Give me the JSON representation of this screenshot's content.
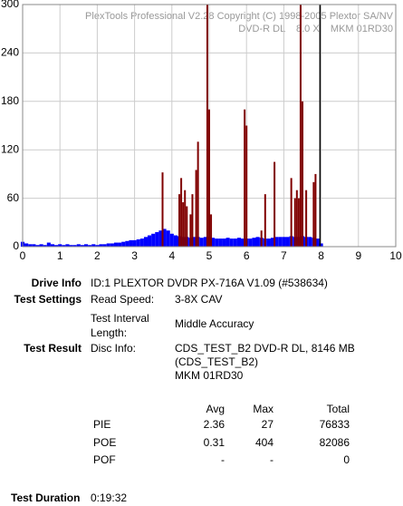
{
  "chart_data": {
    "type": "bar",
    "annotations": [
      "PlexTools Professional V2.28 Copyright (C) 1998-2005 Plextor SA/NV",
      "DVD-R DL    8.0 X    MKM 01RD30"
    ],
    "xlim": [
      0,
      10
    ],
    "xticks": [
      0,
      1,
      2,
      3,
      4,
      5,
      6,
      7,
      8,
      9,
      10
    ],
    "ylim": [
      0,
      300
    ],
    "yticks": [
      0,
      60,
      120,
      180,
      240,
      300
    ],
    "grid": true,
    "series": [
      {
        "color": "#0000ff",
        "x": [
          0,
          0.1,
          0.2,
          0.3,
          0.4,
          0.5,
          0.6,
          0.7,
          0.8,
          0.9,
          1,
          1.1,
          1.2,
          1.3,
          1.4,
          1.5,
          1.6,
          1.7,
          1.8,
          1.9,
          2,
          2.1,
          2.2,
          2.3,
          2.4,
          2.5,
          2.6,
          2.7,
          2.8,
          2.9,
          3,
          3.1,
          3.2,
          3.3,
          3.4,
          3.5,
          3.6,
          3.7,
          3.8,
          3.9,
          4,
          4.1,
          4.2,
          4.3,
          4.4,
          4.5,
          4.6,
          4.7,
          4.8,
          4.9,
          5,
          5.1,
          5.2,
          5.3,
          5.4,
          5.5,
          5.6,
          5.7,
          5.8,
          5.9,
          6,
          6.1,
          6.2,
          6.3,
          6.4,
          6.5,
          6.6,
          6.7,
          6.8,
          6.9,
          7,
          7.1,
          7.2,
          7.3,
          7.4,
          7.5,
          7.6,
          7.7,
          7.8,
          7.9,
          8
        ],
        "values": [
          6,
          4,
          3,
          3,
          2,
          3,
          2,
          5,
          3,
          2,
          3,
          2,
          3,
          2,
          2,
          3,
          2,
          3,
          2,
          3,
          2,
          3,
          3,
          4,
          4,
          5,
          5,
          6,
          7,
          8,
          8,
          9,
          10,
          12,
          14,
          16,
          18,
          20,
          22,
          20,
          16,
          14,
          13,
          12,
          12,
          11,
          12,
          12,
          11,
          12,
          12,
          11,
          10,
          10,
          10,
          11,
          10,
          10,
          11,
          10,
          10,
          10,
          11,
          12,
          11,
          10,
          10,
          11,
          12,
          12,
          12,
          12,
          13,
          12,
          12,
          13,
          12,
          12,
          11,
          10,
          4
        ]
      },
      {
        "color": "#800000",
        "x": [
          3.75,
          4.2,
          4.25,
          4.3,
          4.35,
          4.4,
          4.5,
          4.55,
          4.65,
          4.7,
          4.95,
          5.0,
          5.05,
          5.95,
          6.0,
          6.4,
          6.5,
          6.75,
          7.2,
          7.3,
          7.35,
          7.4,
          7.45,
          7.5,
          7.6,
          7.8,
          7.85
        ],
        "values": [
          92,
          65,
          85,
          55,
          70,
          50,
          40,
          65,
          95,
          130,
          300,
          170,
          40,
          170,
          150,
          20,
          65,
          105,
          85,
          60,
          70,
          60,
          300,
          180,
          70,
          80,
          90
        ]
      },
      {
        "color": "#000000",
        "x": [
          7.97
        ],
        "values": [
          300
        ]
      }
    ]
  },
  "report": {
    "drive_info": {
      "label": "Drive Info",
      "value": "ID:1 PLEXTOR DVDR PX-716A V1.09 (#538634)"
    },
    "test_settings": {
      "label": "Test Settings",
      "items": [
        {
          "label": "Read Speed:",
          "value": "3-8X CAV"
        },
        {
          "label": "Test Interval Length:",
          "value": "Middle Accuracy"
        }
      ]
    },
    "test_result": {
      "label": "Test Result",
      "disc_info_label": "Disc Info:",
      "disc_info": [
        "CDS_TEST_B2 DVD-R DL, 8146 MB",
        "(CDS_TEST_B2)",
        "MKM 01RD30"
      ]
    },
    "stats": {
      "columns": [
        "Avg",
        "Max",
        "Total"
      ],
      "rows": [
        {
          "name": "PIE",
          "cells": [
            2.36,
            27,
            76833
          ]
        },
        {
          "name": "POE",
          "cells": [
            0.31,
            404,
            82086
          ]
        },
        {
          "name": "POF",
          "cells": [
            "-",
            "-",
            0
          ]
        }
      ]
    },
    "test_duration": {
      "label": "Test Duration",
      "value": "0:19:32"
    }
  }
}
